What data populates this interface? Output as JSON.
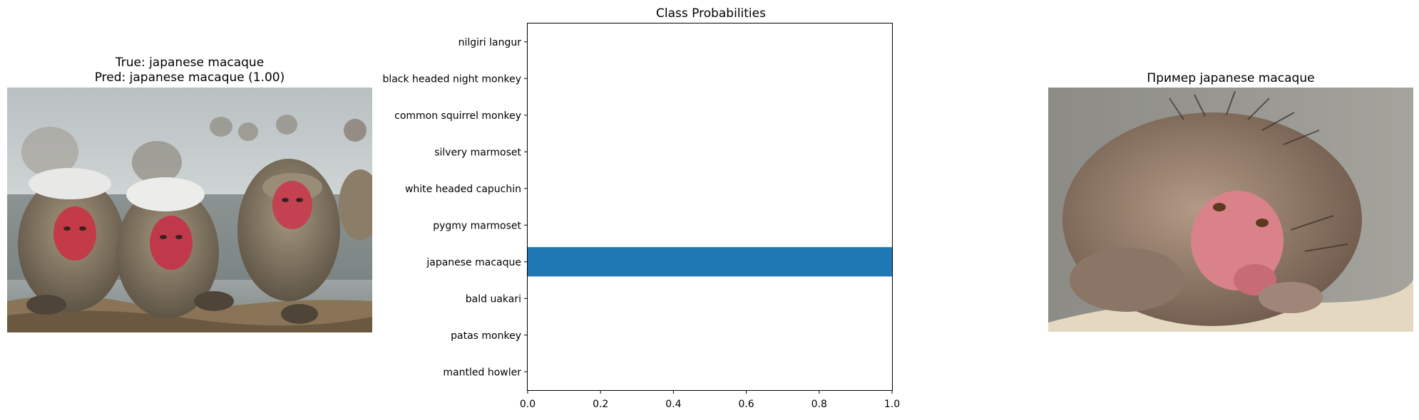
{
  "left_panel": {
    "title_line1": "True: japanese macaque",
    "title_line2": "Pred: japanese macaque (1.00)",
    "image_icon": "macaques-in-hot-spring-photo"
  },
  "right_panel": {
    "title": "Пример japanese macaque",
    "image_icon": "wet-macaque-photo"
  },
  "colors": {
    "bar": "#1f77b4",
    "axis": "#000000"
  },
  "chart_data": {
    "type": "bar",
    "orientation": "horizontal",
    "title": "Class Probabilities",
    "categories": [
      "mantled howler",
      "patas monkey",
      "bald uakari",
      "japanese macaque",
      "pygmy marmoset",
      "white headed capuchin",
      "silvery marmoset",
      "common squirrel monkey",
      "black headed night monkey",
      "nilgiri langur"
    ],
    "values": [
      0.0,
      0.0,
      0.0,
      1.0,
      0.0,
      0.0,
      0.0,
      0.0,
      0.0,
      0.0
    ],
    "xlim": [
      0,
      1.0
    ],
    "xticks": [
      "0.0",
      "0.2",
      "0.4",
      "0.6",
      "0.8",
      "1.0"
    ],
    "xlabel": "",
    "ylabel": ""
  }
}
